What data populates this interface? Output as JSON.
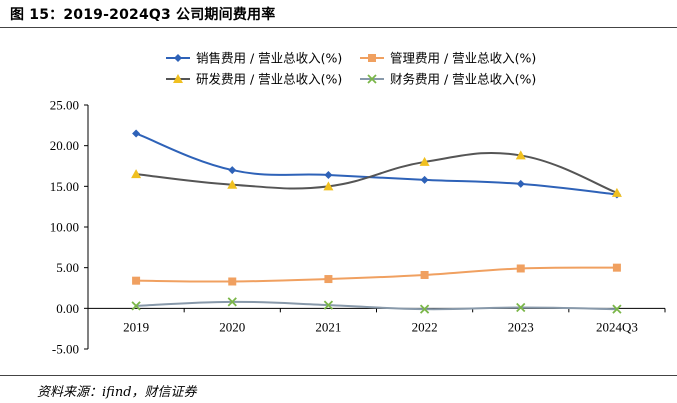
{
  "figure_title": "图 15：2019-2024Q3 公司期间费用率",
  "source": "资料来源：ifind，财信证券",
  "chart_data": {
    "type": "line",
    "categories": [
      "2019",
      "2020",
      "2021",
      "2022",
      "2023",
      "2024Q3"
    ],
    "ylim": [
      -5,
      25
    ],
    "yticks": [
      "-5.00",
      "0.00",
      "5.00",
      "10.00",
      "15.00",
      "20.00",
      "25.00"
    ],
    "yticks_values": [
      -5,
      0,
      5,
      10,
      15,
      20,
      25
    ],
    "grid": false,
    "legend_position": "top",
    "series": [
      {
        "name": "销售费用 / 营业总收入(%)",
        "color": "#2e62b8",
        "marker": "diamond",
        "values": [
          21.5,
          17.0,
          16.4,
          15.8,
          15.3,
          14.0
        ]
      },
      {
        "name": "管理费用 / 营业总收入(%)",
        "color": "#f0a060",
        "marker": "square",
        "values": [
          3.4,
          3.3,
          3.6,
          4.1,
          4.9,
          5.0
        ]
      },
      {
        "name": "研发费用 / 营业总收入(%)",
        "color": "#555555",
        "marker": "triangle",
        "values": [
          16.5,
          15.2,
          15.0,
          18.0,
          18.8,
          14.2
        ]
      },
      {
        "name": "财务费用 / 营业总收入(%)",
        "color": "#8899aa",
        "marker": "x",
        "values": [
          0.3,
          0.8,
          0.4,
          -0.1,
          0.1,
          -0.1
        ]
      }
    ]
  }
}
